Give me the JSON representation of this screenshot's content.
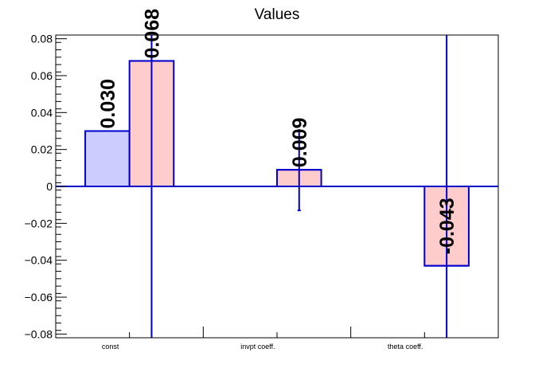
{
  "chart_data": {
    "type": "bar",
    "title": "Values",
    "xlabel": "",
    "ylabel": "",
    "ylim": [
      -0.082,
      0.082
    ],
    "yticks": [
      -0.08,
      -0.06,
      -0.04,
      -0.02,
      0,
      0.02,
      0.04,
      0.06,
      0.08
    ],
    "ytick_labels": [
      "−0.08",
      "−0.06",
      "−0.04",
      "−0.02",
      "0",
      "0.02",
      "0.04",
      "0.06",
      "0.08"
    ],
    "categories": [
      "const",
      "invpt coeff.",
      "theta coeff."
    ],
    "series": [
      {
        "values": [
          0.03,
          null,
          null
        ],
        "labels": [
          "0.030",
          "",
          ""
        ],
        "errors": [
          null,
          null,
          null
        ],
        "fill": "#ccccff",
        "stroke": "#0000cc"
      },
      {
        "values": [
          0.068,
          0.009,
          -0.043
        ],
        "labels": [
          "0.068",
          "0.009",
          "-0.043"
        ],
        "errors": [
          0.2,
          0.022,
          0.2
        ],
        "fill": "#ffcccc",
        "stroke": "#0000cc"
      }
    ],
    "grid": false,
    "legend": "none"
  }
}
